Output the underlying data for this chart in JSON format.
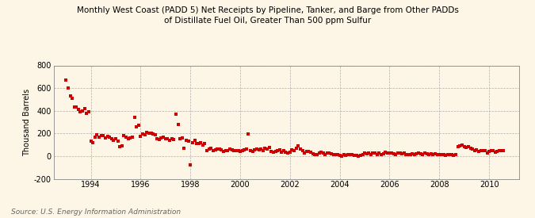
{
  "title_line1": "Monthly West Coast (PADD 5) Net Receipts by Pipeline, Tanker, and Barge from Other PADDs",
  "title_line2": "of Distillate Fuel Oil, Greater Than 500 ppm Sulfur",
  "ylabel": "Thousand Barrels",
  "source": "Source: U.S. Energy Information Administration",
  "background_color": "#fdf5e6",
  "dot_color": "#cc0000",
  "dot_size": 5,
  "xlim_left": 1992.5,
  "xlim_right": 2011.2,
  "ylim_bottom": -200,
  "ylim_top": 800,
  "yticks": [
    -200,
    0,
    200,
    400,
    600,
    800
  ],
  "xticks": [
    1994,
    1996,
    1998,
    2000,
    2002,
    2004,
    2006,
    2008,
    2010
  ],
  "data_x": [
    1993.0,
    1993.08,
    1993.17,
    1993.25,
    1993.33,
    1993.42,
    1993.5,
    1993.58,
    1993.67,
    1993.75,
    1993.83,
    1993.92,
    1994.0,
    1994.08,
    1994.17,
    1994.25,
    1994.33,
    1994.42,
    1994.5,
    1994.58,
    1994.67,
    1994.75,
    1994.83,
    1994.92,
    1995.0,
    1995.08,
    1995.17,
    1995.25,
    1995.33,
    1995.42,
    1995.5,
    1995.58,
    1995.67,
    1995.75,
    1995.83,
    1995.92,
    1996.0,
    1996.08,
    1996.17,
    1996.25,
    1996.33,
    1996.42,
    1996.5,
    1996.58,
    1996.67,
    1996.75,
    1996.83,
    1996.92,
    1997.0,
    1997.08,
    1997.17,
    1997.25,
    1997.33,
    1997.42,
    1997.5,
    1997.58,
    1997.67,
    1997.75,
    1997.83,
    1997.92,
    1998.0,
    1998.08,
    1998.17,
    1998.25,
    1998.33,
    1998.42,
    1998.5,
    1998.58,
    1998.67,
    1998.75,
    1998.83,
    1998.92,
    1999.0,
    1999.08,
    1999.17,
    1999.25,
    1999.33,
    1999.42,
    1999.5,
    1999.58,
    1999.67,
    1999.75,
    1999.83,
    1999.92,
    2000.0,
    2000.08,
    2000.17,
    2000.25,
    2000.33,
    2000.42,
    2000.5,
    2000.58,
    2000.67,
    2000.75,
    2000.83,
    2000.92,
    2001.0,
    2001.08,
    2001.17,
    2001.25,
    2001.33,
    2001.42,
    2001.5,
    2001.58,
    2001.67,
    2001.75,
    2001.83,
    2001.92,
    2002.0,
    2002.08,
    2002.17,
    2002.25,
    2002.33,
    2002.42,
    2002.5,
    2002.58,
    2002.67,
    2002.75,
    2002.83,
    2002.92,
    2003.0,
    2003.08,
    2003.17,
    2003.25,
    2003.33,
    2003.42,
    2003.5,
    2003.58,
    2003.67,
    2003.75,
    2003.83,
    2003.92,
    2004.0,
    2004.08,
    2004.17,
    2004.25,
    2004.33,
    2004.42,
    2004.5,
    2004.58,
    2004.67,
    2004.75,
    2004.83,
    2004.92,
    2005.0,
    2005.08,
    2005.17,
    2005.25,
    2005.33,
    2005.42,
    2005.5,
    2005.58,
    2005.67,
    2005.75,
    2005.83,
    2005.92,
    2006.0,
    2006.08,
    2006.17,
    2006.25,
    2006.33,
    2006.42,
    2006.5,
    2006.58,
    2006.67,
    2006.75,
    2006.83,
    2006.92,
    2007.0,
    2007.08,
    2007.17,
    2007.25,
    2007.33,
    2007.42,
    2007.5,
    2007.58,
    2007.67,
    2007.75,
    2007.83,
    2007.92,
    2008.0,
    2008.08,
    2008.17,
    2008.25,
    2008.33,
    2008.42,
    2008.5,
    2008.58,
    2008.67,
    2008.75,
    2008.83,
    2008.92,
    2009.0,
    2009.08,
    2009.17,
    2009.25,
    2009.33,
    2009.42,
    2009.5,
    2009.58,
    2009.67,
    2009.75,
    2009.83,
    2009.92,
    2010.0,
    2010.08,
    2010.17,
    2010.25,
    2010.33,
    2010.42,
    2010.5,
    2010.58
  ],
  "data_y": [
    670,
    600,
    530,
    510,
    430,
    430,
    410,
    390,
    400,
    420,
    380,
    390,
    130,
    120,
    170,
    190,
    170,
    180,
    180,
    160,
    175,
    165,
    150,
    140,
    155,
    130,
    80,
    90,
    180,
    165,
    155,
    160,
    170,
    340,
    260,
    270,
    175,
    195,
    190,
    210,
    200,
    200,
    195,
    185,
    155,
    145,
    160,
    170,
    150,
    155,
    140,
    155,
    145,
    370,
    280,
    150,
    160,
    70,
    140,
    130,
    -80,
    120,
    140,
    110,
    110,
    120,
    100,
    110,
    50,
    60,
    70,
    45,
    55,
    60,
    65,
    55,
    40,
    50,
    45,
    60,
    55,
    50,
    45,
    50,
    40,
    50,
    55,
    65,
    195,
    50,
    40,
    55,
    65,
    55,
    60,
    50,
    70,
    60,
    75,
    40,
    35,
    40,
    45,
    55,
    35,
    50,
    35,
    30,
    35,
    55,
    50,
    70,
    90,
    65,
    50,
    30,
    40,
    40,
    35,
    20,
    15,
    10,
    25,
    35,
    30,
    15,
    30,
    25,
    20,
    10,
    15,
    10,
    5,
    0,
    10,
    5,
    10,
    15,
    10,
    5,
    5,
    0,
    5,
    10,
    25,
    20,
    25,
    15,
    30,
    25,
    15,
    30,
    15,
    20,
    35,
    25,
    30,
    25,
    20,
    15,
    30,
    25,
    20,
    30,
    10,
    15,
    10,
    20,
    15,
    20,
    25,
    20,
    15,
    25,
    20,
    15,
    20,
    15,
    20,
    10,
    10,
    15,
    10,
    5,
    10,
    15,
    10,
    5,
    10,
    80,
    90,
    100,
    85,
    75,
    80,
    70,
    60,
    50,
    55,
    40,
    50,
    45,
    45,
    30,
    40,
    50,
    45,
    35,
    40,
    50,
    45,
    50
  ],
  "title_fontsize": 7.5,
  "tick_fontsize": 7,
  "ylabel_fontsize": 7,
  "source_fontsize": 6.5
}
